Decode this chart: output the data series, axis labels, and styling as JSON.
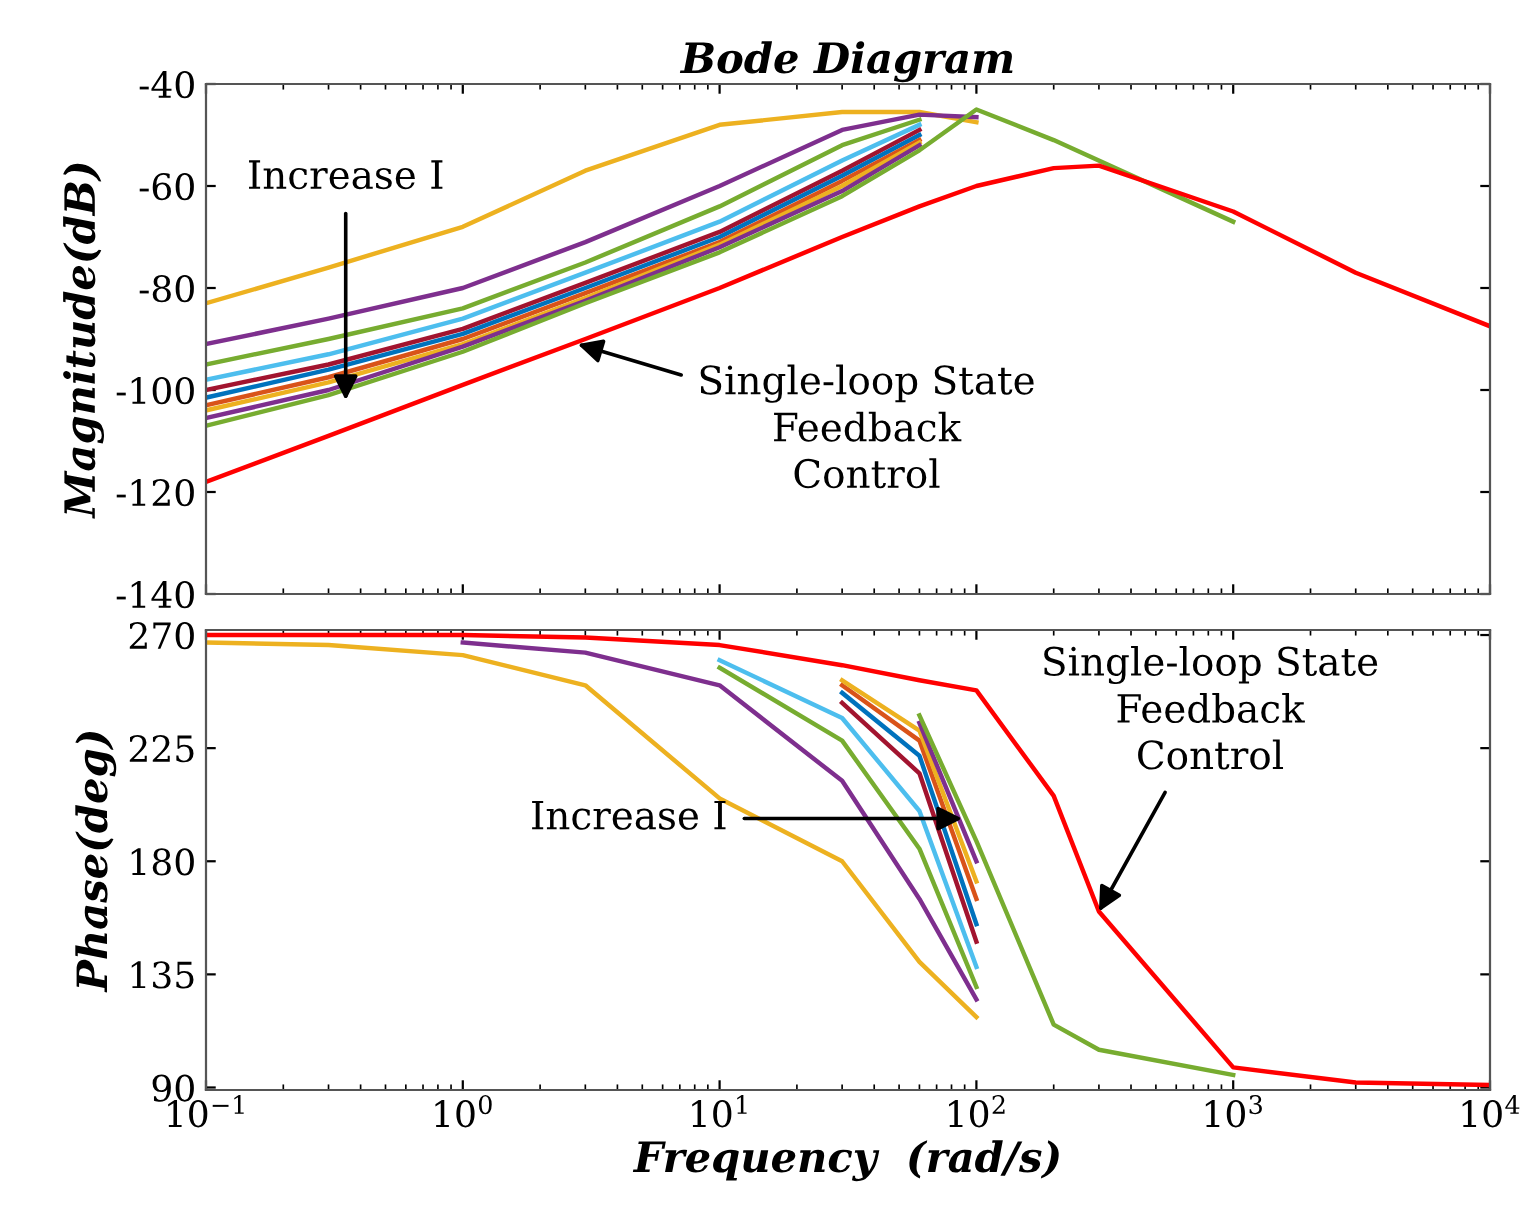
{
  "chart_data": [
    {
      "type": "line",
      "title": "Bode Diagram",
      "ylabel": "Magnitude(dB)",
      "log": "x",
      "grid": false,
      "tick_labels": "y",
      "xlim": [
        0.1,
        10000
      ],
      "xticks": [
        {
          "value": 0.1,
          "label": null
        },
        {
          "value": 1,
          "label": null
        },
        {
          "value": 10,
          "label": null
        },
        {
          "value": 100,
          "label": null
        },
        {
          "value": 1000,
          "label": null
        },
        {
          "value": 10000,
          "label": null
        }
      ],
      "ylim": [
        -140,
        -40
      ],
      "yticks": [
        -140,
        -120,
        -100,
        -80,
        -60,
        -40
      ],
      "series": [
        {
          "color": "#edb120",
          "x": [
            0.1,
            0.3,
            1,
            3,
            10,
            30,
            60,
            100
          ],
          "values": [
            -83,
            -76,
            -68,
            -57,
            -48,
            -45.5,
            -45.5,
            -47.5
          ]
        },
        {
          "color": "#7e2f8e",
          "x": [
            0.1,
            0.3,
            1,
            3,
            10,
            30,
            60,
            100
          ],
          "values": [
            -91,
            -86,
            -80,
            -71,
            -60,
            -49,
            -46,
            -46.5
          ]
        },
        {
          "color": "#77ac30",
          "x": [
            0.1,
            0.3,
            1,
            3,
            10,
            30,
            60
          ],
          "values": [
            -95,
            -90,
            -84,
            -75,
            -64,
            -52,
            -47
          ]
        },
        {
          "color": "#4dbeee",
          "x": [
            0.1,
            0.3,
            1,
            3,
            10,
            30,
            60
          ],
          "values": [
            -98,
            -93,
            -86,
            -77,
            -67,
            -55,
            -48
          ]
        },
        {
          "color": "#a2142f",
          "x": [
            0.1,
            0.3,
            1,
            3,
            10,
            30,
            60
          ],
          "values": [
            -100,
            -95,
            -88,
            -79,
            -69,
            -57,
            -49
          ]
        },
        {
          "color": "#0072bd",
          "x": [
            0.1,
            0.3,
            1,
            3,
            10,
            30,
            60
          ],
          "values": [
            -101.5,
            -96,
            -89,
            -80,
            -70,
            -58,
            -50
          ]
        },
        {
          "color": "#d95319",
          "x": [
            0.1,
            0.3,
            1,
            3,
            10,
            30,
            60
          ],
          "values": [
            -103,
            -97.5,
            -90,
            -81,
            -71,
            -59,
            -51
          ]
        },
        {
          "color": "#edb120",
          "x": [
            0.1,
            0.3,
            1,
            3,
            10,
            30,
            60
          ],
          "values": [
            -104,
            -98.5,
            -91,
            -82,
            -71.5,
            -60,
            -51.5
          ]
        },
        {
          "color": "#7e2f8e",
          "x": [
            0.1,
            0.3,
            1,
            3,
            10,
            30,
            60
          ],
          "values": [
            -105.5,
            -100,
            -91.5,
            -82.5,
            -72,
            -61,
            -52
          ]
        },
        {
          "color": "#77ac30",
          "x": [
            0.1,
            0.3,
            1,
            3,
            10,
            30,
            60,
            100,
            200,
            1000
          ],
          "values": [
            -107,
            -101,
            -92.5,
            -83,
            -73,
            -62,
            -53,
            -45,
            -51,
            -67
          ]
        },
        {
          "color": "#ff0000",
          "x": [
            0.1,
            0.3,
            1,
            3,
            10,
            30,
            60,
            100,
            200,
            300,
            1000,
            3000,
            10000
          ],
          "values": [
            -118,
            -109,
            -99,
            -90,
            -80,
            -70,
            -64,
            -60,
            -56.5,
            -56,
            -65,
            -77,
            -87.5
          ]
        }
      ],
      "annotations": [
        {
          "text": "Increase I",
          "x": 0.35,
          "y": -102
        },
        {
          "text": "Single-loop State\nFeedback\nControl",
          "x": 2.8,
          "y": -91
        }
      ]
    },
    {
      "type": "line",
      "xlabel": "Frequency  (rad/s)",
      "ylabel": "Phase(deg)",
      "log": "x",
      "grid": false,
      "xlim": [
        0.1,
        10000
      ],
      "xticks": [
        {
          "value": 0.1,
          "label": "10$^{−1}$"
        },
        {
          "value": 1,
          "label": "10$^{0}$"
        },
        {
          "value": 10,
          "label": "10$^{1}$"
        },
        {
          "value": 100,
          "label": "10$^{2}$"
        },
        {
          "value": 1000,
          "label": "10$^{3}$"
        },
        {
          "value": 10000,
          "label": "10$^{4}$"
        }
      ],
      "ylim": [
        89,
        272
      ],
      "yticks": [
        90,
        135,
        180,
        225,
        270
      ],
      "series": [
        {
          "color": "#edb120",
          "x": [
            0.1,
            0.3,
            1,
            3,
            10,
            30,
            60,
            100
          ],
          "values": [
            267,
            266,
            262,
            250,
            205,
            180,
            140,
            118
          ]
        },
        {
          "color": "#7e2f8e",
          "x": [
            1,
            3,
            10,
            30,
            60,
            100
          ],
          "values": [
            267,
            263,
            250,
            212,
            165,
            125
          ]
        },
        {
          "color": "#77ac30",
          "x": [
            10,
            30,
            60,
            100
          ],
          "values": [
            257,
            228,
            185,
            130
          ]
        },
        {
          "color": "#4dbeee",
          "x": [
            10,
            30,
            60,
            100
          ],
          "values": [
            260,
            237,
            200,
            138
          ]
        },
        {
          "color": "#a2142f",
          "x": [
            30,
            60,
            100
          ],
          "values": [
            243,
            215,
            148
          ]
        },
        {
          "color": "#0072bd",
          "x": [
            30,
            60,
            100
          ],
          "values": [
            247,
            222,
            155
          ]
        },
        {
          "color": "#d95319",
          "x": [
            30,
            60,
            100
          ],
          "values": [
            250,
            228,
            165
          ]
        },
        {
          "color": "#edb120",
          "x": [
            30,
            60,
            100
          ],
          "values": [
            252,
            232,
            172
          ]
        },
        {
          "color": "#7e2f8e",
          "x": [
            60,
            100
          ],
          "values": [
            235,
            180
          ]
        },
        {
          "color": "#77ac30",
          "x": [
            60,
            100,
            200,
            300,
            1000
          ],
          "values": [
            238,
            188,
            115,
            105,
            95
          ]
        },
        {
          "color": "#ff0000",
          "x": [
            0.1,
            0.3,
            1,
            3,
            10,
            30,
            60,
            100,
            200,
            300,
            1000,
            3000,
            10000
          ],
          "values": [
            270,
            270,
            270,
            269,
            266,
            258,
            252,
            248,
            206,
            160,
            98,
            92,
            91
          ]
        }
      ],
      "annotations": [
        {
          "text": "Increase I",
          "x": 88,
          "y": 197
        },
        {
          "text": "Single-loop State\nFeedback\nControl",
          "x": 300,
          "y": 160
        }
      ]
    }
  ]
}
